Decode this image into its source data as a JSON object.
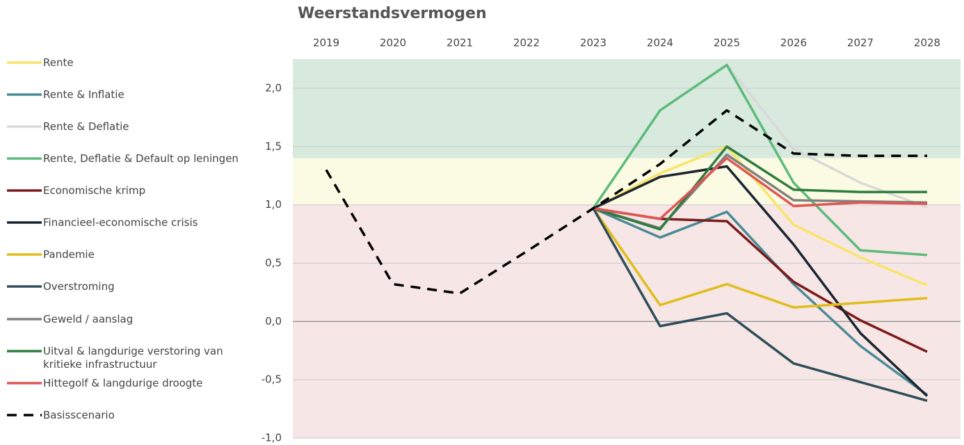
{
  "chart_data": {
    "type": "line",
    "title": "Weerstandsvermogen",
    "categories": [
      "2019",
      "2020",
      "2021",
      "2022",
      "2023",
      "2024",
      "2025",
      "2026",
      "2027",
      "2028"
    ],
    "ylim": [
      -1.0,
      2.25
    ],
    "yticks": [
      {
        "value": -1.0,
        "label": "-1,0"
      },
      {
        "value": -0.5,
        "label": "-0,5"
      },
      {
        "value": 0,
        "label": "0,0"
      },
      {
        "value": 0.5,
        "label": "0,5"
      },
      {
        "value": 1.0,
        "label": "1,0"
      },
      {
        "value": 1.5,
        "label": "1,5"
      },
      {
        "value": 2.0,
        "label": "2,0"
      }
    ],
    "grid": true,
    "legend": "left",
    "bands": [
      {
        "from": 1.4,
        "to": 2.25,
        "color": "#d7eadd"
      },
      {
        "from": 1.0,
        "to": 1.4,
        "color": "#fbfbe3"
      },
      {
        "from": -1.0,
        "to": 1.0,
        "color": "#f6e6e6"
      }
    ],
    "series": [
      {
        "name": "Rente",
        "color": "#f9e46a",
        "values": [
          null,
          null,
          null,
          null,
          0.97,
          1.27,
          1.5,
          0.83,
          0.55,
          0.31
        ]
      },
      {
        "name": "Rente & Inflatie",
        "color": "#4a8a96",
        "values": [
          null,
          null,
          null,
          null,
          0.97,
          0.72,
          0.94,
          0.32,
          -0.21,
          -0.63
        ]
      },
      {
        "name": "Rente & Deflatie",
        "color": "#d9d9d9",
        "values": [
          null,
          null,
          null,
          null,
          0.97,
          1.81,
          2.2,
          1.48,
          1.19,
          0.98
        ]
      },
      {
        "name": "Rente, Deflatie & Default op leningen",
        "color": "#5dbb7a",
        "values": [
          null,
          null,
          null,
          null,
          0.97,
          1.81,
          2.2,
          1.19,
          0.61,
          0.57
        ]
      },
      {
        "name": "Economische krimp",
        "color": "#7b1a1a",
        "values": [
          null,
          null,
          null,
          null,
          0.97,
          0.88,
          0.86,
          0.34,
          0.01,
          -0.26
        ]
      },
      {
        "name": "Financieel-economische crisis",
        "color": "#1a2530",
        "values": [
          null,
          null,
          null,
          null,
          0.97,
          1.24,
          1.33,
          0.66,
          -0.1,
          -0.64
        ]
      },
      {
        "name": "Pandemie",
        "color": "#e0bd1a",
        "values": [
          null,
          null,
          null,
          null,
          0.97,
          0.14,
          0.32,
          0.12,
          0.16,
          0.2
        ]
      },
      {
        "name": "Overstroming",
        "color": "#2e4d58",
        "values": [
          null,
          null,
          null,
          null,
          0.97,
          -0.04,
          0.07,
          -0.36,
          -0.52,
          -0.68
        ]
      },
      {
        "name": "Geweld / aanslag",
        "color": "#808080",
        "values": [
          null,
          null,
          null,
          null,
          0.97,
          0.8,
          1.43,
          1.04,
          1.03,
          1.02
        ]
      },
      {
        "name": "Uitval & langdurige verstoring van kritieke infrastructuur",
        "color": "#2e7d3e",
        "values": [
          null,
          null,
          null,
          null,
          0.97,
          0.79,
          1.5,
          1.13,
          1.11,
          1.11
        ]
      },
      {
        "name": "Hittegolf & langdurige droogte",
        "color": "#e05555",
        "values": [
          null,
          null,
          null,
          null,
          0.97,
          0.88,
          1.4,
          0.99,
          1.02,
          1.01
        ]
      },
      {
        "name": "Basisscenario",
        "color": "#000000",
        "dashed": true,
        "values": [
          1.3,
          0.32,
          0.24,
          0.6,
          0.97,
          1.35,
          1.81,
          1.44,
          1.42,
          1.42
        ]
      }
    ]
  }
}
